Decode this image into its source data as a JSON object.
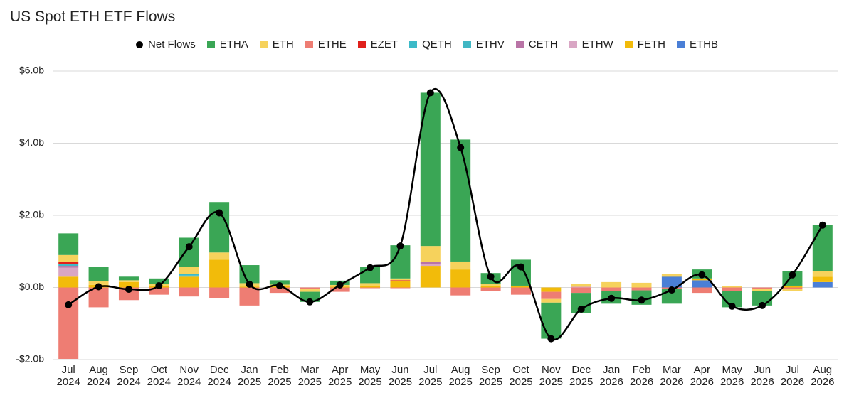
{
  "chart_data": {
    "type": "bar",
    "title": "US Spot ETH ETF Flows",
    "categories": [
      "Jul 2024",
      "Aug 2024",
      "Sep 2024",
      "Oct 2024",
      "Nov 2024",
      "Dec 2024",
      "Jan 2025",
      "Feb 2025",
      "Mar 2025",
      "Apr 2025",
      "May 2025",
      "Jun 2025",
      "Jul 2025",
      "Aug 2025",
      "Sep 2025",
      "Oct 2025",
      "Nov 2025",
      "Dec 2025",
      "Jan 2026",
      "Feb 2026",
      "Mar 2026",
      "Apr 2026",
      "May 2026",
      "Jun 2026",
      "Jul 2026",
      "Aug 2026"
    ],
    "series": [
      {
        "name": "Net Flows",
        "type": "line",
        "color": "#000000",
        "values": [
          -0.48,
          0.02,
          -0.05,
          0.05,
          1.13,
          2.07,
          0.09,
          0.05,
          -0.4,
          0.07,
          0.55,
          1.15,
          5.4,
          3.88,
          0.3,
          0.57,
          -1.42,
          -0.6,
          -0.3,
          -0.35,
          -0.07,
          0.35,
          -0.52,
          -0.5,
          0.35,
          1.73
        ]
      },
      {
        "name": "ETHA",
        "type": "bar",
        "color": "#3aa655",
        "values": [
          0.6,
          0.4,
          0.1,
          0.15,
          0.8,
          1.4,
          0.5,
          0.12,
          -0.28,
          0.12,
          0.45,
          0.92,
          4.25,
          3.38,
          0.3,
          0.72,
          -1.0,
          -0.55,
          -0.35,
          -0.4,
          -0.4,
          0.25,
          -0.45,
          -0.4,
          0.4,
          1.28
        ]
      },
      {
        "name": "ETH",
        "type": "bar",
        "color": "#f6d25c",
        "values": [
          0.2,
          0.1,
          0.05,
          0.05,
          0.2,
          0.2,
          0.1,
          0.05,
          -0.07,
          0.05,
          0.08,
          0.05,
          0.45,
          0.22,
          0.05,
          0,
          -0.1,
          0.08,
          0.15,
          0.13,
          0.05,
          0,
          0.03,
          -0.05,
          -0.05,
          0.15
        ]
      },
      {
        "name": "ETHE",
        "type": "bar",
        "color": "#ee7d73",
        "values": [
          -1.98,
          -0.55,
          -0.35,
          -0.2,
          -0.25,
          -0.3,
          -0.5,
          -0.15,
          -0.05,
          -0.12,
          -0.02,
          -0.02,
          0,
          -0.22,
          -0.1,
          -0.2,
          -0.2,
          -0.15,
          -0.1,
          -0.08,
          -0.05,
          -0.15,
          -0.1,
          -0.05,
          -0.05,
          0
        ]
      },
      {
        "name": "EZET",
        "type": "bar",
        "color": "#e0201b",
        "values": [
          0.05,
          0,
          0,
          0,
          0,
          0,
          0,
          0,
          0,
          0,
          0,
          0.03,
          0,
          0,
          0,
          0,
          0,
          0,
          0,
          0,
          0,
          0,
          0,
          0,
          0,
          0
        ]
      },
      {
        "name": "QETH",
        "type": "bar",
        "color": "#3cbac8",
        "values": [
          0.02,
          0,
          0,
          0,
          0.05,
          0,
          0,
          0,
          0,
          0,
          0,
          0,
          0,
          0,
          0,
          0,
          0,
          0,
          0,
          0,
          0,
          0,
          0,
          0,
          0,
          0
        ]
      },
      {
        "name": "ETHV",
        "type": "bar",
        "color": "#41b7c4",
        "values": [
          0.03,
          0,
          0,
          0,
          0.03,
          0,
          0,
          0,
          0,
          0,
          0,
          0,
          0,
          0,
          0,
          0,
          0,
          0,
          0,
          0,
          0,
          0,
          0,
          0,
          0,
          0
        ]
      },
      {
        "name": "CETH",
        "type": "bar",
        "color": "#b974a6",
        "values": [
          0.05,
          0,
          0,
          0,
          0,
          0,
          0,
          0,
          0,
          0,
          0,
          0,
          0.05,
          0,
          0,
          0,
          0,
          0,
          0,
          0,
          0,
          0,
          0,
          0,
          0,
          0
        ]
      },
      {
        "name": "ETHW",
        "type": "bar",
        "color": "#d9a6c4",
        "values": [
          0.25,
          0,
          0,
          0,
          0,
          0,
          0,
          0,
          0,
          0,
          0,
          0,
          0.05,
          0,
          0,
          0,
          0,
          0.02,
          0,
          0,
          0,
          0,
          0,
          0,
          0,
          0
        ]
      },
      {
        "name": "FETH",
        "type": "bar",
        "color": "#f2bb0a",
        "values": [
          0.3,
          0.07,
          0.15,
          0.05,
          0.3,
          0.77,
          0.02,
          0.03,
          0,
          0.02,
          0.04,
          0.17,
          0.6,
          0.5,
          0.05,
          0.05,
          -0.12,
          0,
          0,
          0,
          0.03,
          0.05,
          0,
          0,
          0.05,
          0.15
        ]
      },
      {
        "name": "ETHB",
        "type": "bar",
        "color": "#4a7fd6",
        "values": [
          0,
          0,
          0,
          0,
          0,
          0,
          0,
          0,
          0,
          0,
          0,
          0,
          0,
          0,
          0,
          0,
          0,
          0,
          0,
          0,
          0.3,
          0.2,
          0,
          0,
          0,
          0.15
        ]
      }
    ],
    "ylim": [
      -2,
      6
    ],
    "yticks": [
      {
        "value": -2,
        "label": "-$2.0b"
      },
      {
        "value": 0,
        "label": "$0.0b"
      },
      {
        "value": 2,
        "label": "$2.0b"
      },
      {
        "value": 4,
        "label": "$4.0b"
      },
      {
        "value": 6,
        "label": "$6.0b"
      }
    ],
    "grid": true
  }
}
